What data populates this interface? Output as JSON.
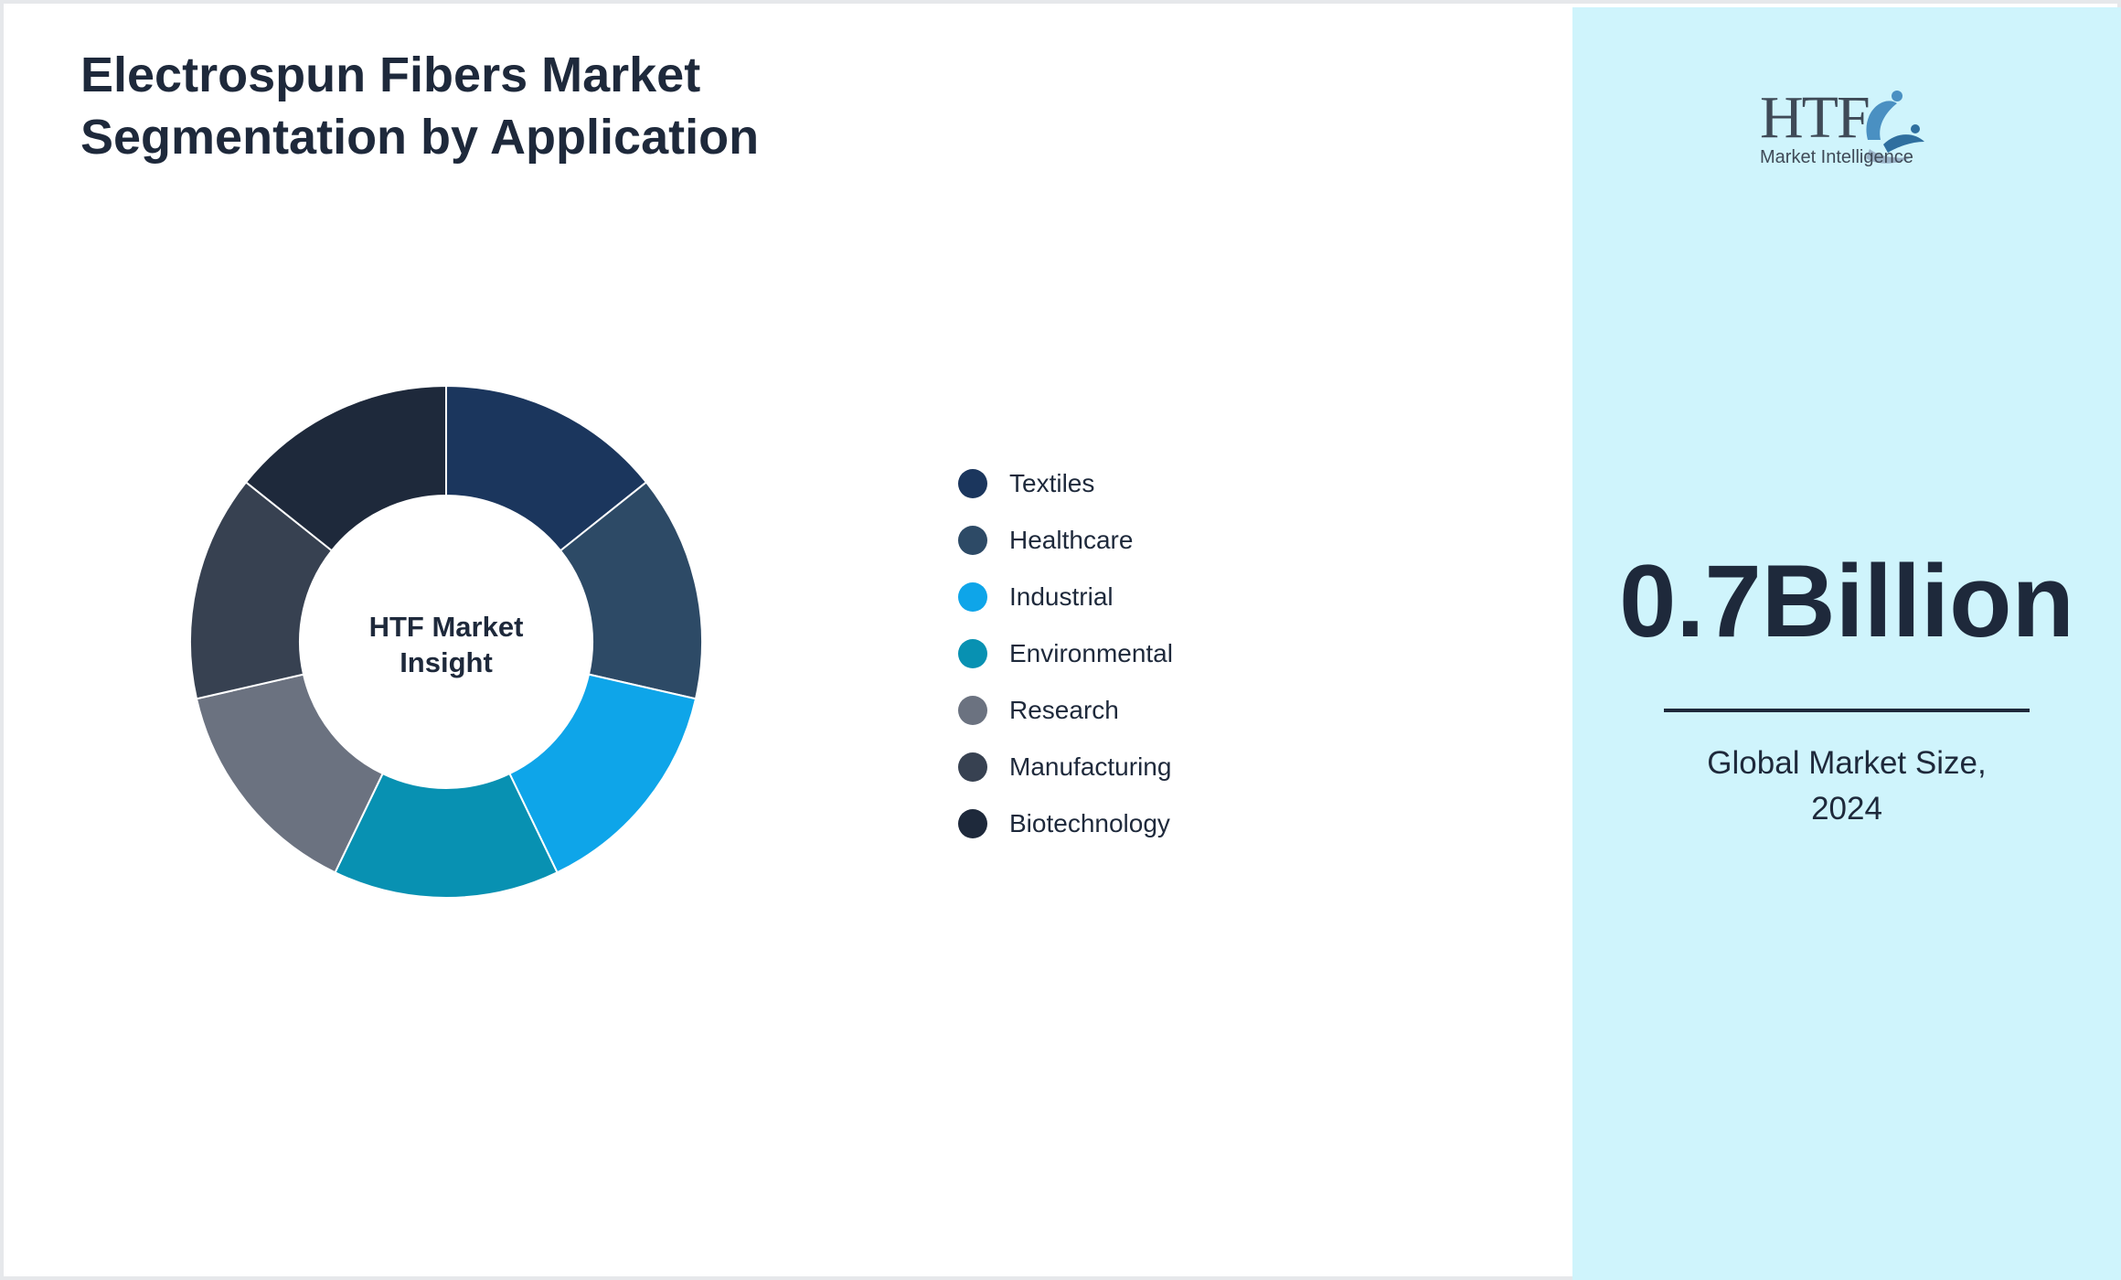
{
  "header": {
    "title_line1": "Electrospun Fibers Market",
    "title_line2": "Segmentation by Application"
  },
  "chart_data": {
    "type": "pie",
    "donut": true,
    "center_label_line1": "HTF Market",
    "center_label_line2": "Insight",
    "categories": [
      "Textiles",
      "Healthcare",
      "Industrial",
      "Environmental",
      "Research",
      "Manufacturing",
      "Biotechnology"
    ],
    "values": [
      1,
      1,
      1,
      1,
      1,
      1,
      1
    ],
    "colors": [
      "#1b365d",
      "#2d4a66",
      "#0ea5e9",
      "#0891b2",
      "#6b7280",
      "#374151",
      "#1e293b"
    ],
    "legend_position": "right"
  },
  "side_panel": {
    "logo_text": "HTF",
    "logo_subtext": "Market Intelligence",
    "market_value": "0.7Billion",
    "caption_line1": "Global Market Size,",
    "caption_line2": "2024"
  },
  "colors": {
    "panel_background": "#cff4fc",
    "text": "#1e293b"
  }
}
